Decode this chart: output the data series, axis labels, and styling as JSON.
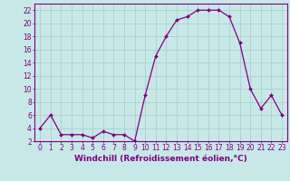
{
  "hours": [
    0,
    1,
    2,
    3,
    4,
    5,
    6,
    7,
    8,
    9,
    10,
    11,
    12,
    13,
    14,
    15,
    16,
    17,
    18,
    19,
    20,
    21,
    22,
    23
  ],
  "values": [
    4,
    6,
    3,
    3,
    3,
    2.5,
    3.5,
    3,
    3,
    2,
    9,
    15,
    18,
    20.5,
    21,
    22,
    22,
    22,
    21,
    17,
    10,
    7,
    9,
    6
  ],
  "line_color": "#800080",
  "marker_color": "#800080",
  "bg_color": "#c8e8e8",
  "grid_color": "#aacece",
  "axis_color": "#800080",
  "tick_color": "#800080",
  "xlabel": "Windchill (Refroidissement éolien,°C)",
  "ylim": [
    2,
    23
  ],
  "xlim": [
    -0.5,
    23.5
  ],
  "yticks": [
    2,
    4,
    6,
    8,
    10,
    12,
    14,
    16,
    18,
    20,
    22
  ],
  "label_fontsize": 6.5,
  "tick_fontsize": 5.5
}
